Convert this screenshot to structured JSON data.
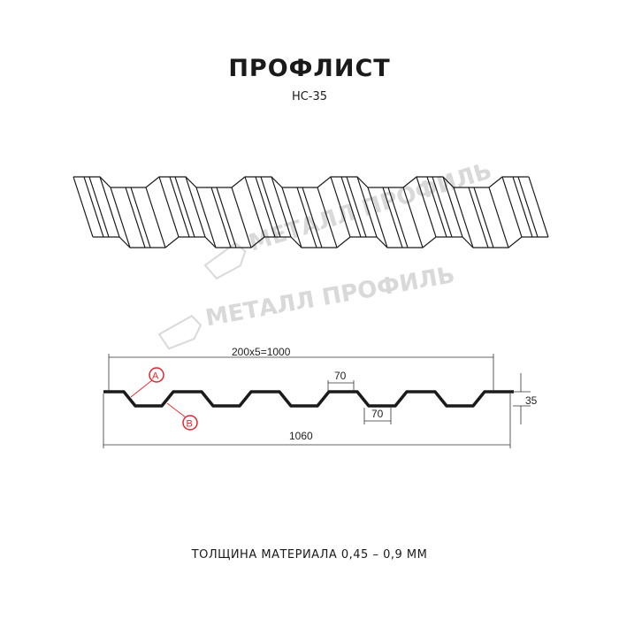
{
  "title": "ПРОФЛИСТ",
  "subtitle": "НС-35",
  "footer": "ТОЛЩИНА МАТЕРИАЛА 0,45 – 0,9 ММ",
  "watermark": "МЕТАЛЛ ПРОФИЛЬ",
  "dimensions": {
    "cover_width": "200x5=1000",
    "full_width": "1060",
    "top_flange": "70",
    "bottom_flange": "70",
    "height": "35"
  },
  "callouts": {
    "a": "A",
    "b": "B"
  },
  "colors": {
    "profile": "#1a1a1a",
    "callout": "#e0262b",
    "watermark": "#d9d9d9"
  }
}
